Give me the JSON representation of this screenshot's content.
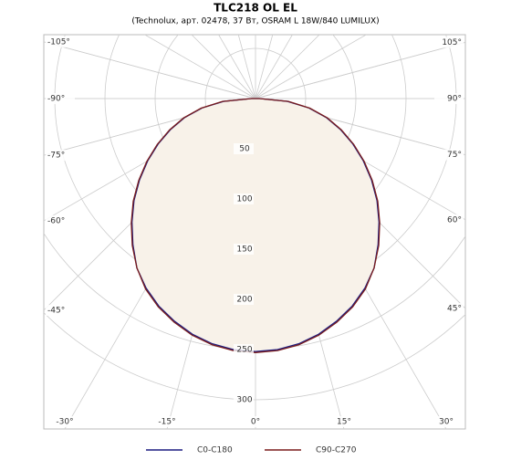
{
  "chart_data": {
    "type": "polar",
    "title": "TLC218 OL EL",
    "subtitle": "(Technolux, арт. 02478, 37 Вт, OSRAM L 18W/840 LUMILUX)",
    "x": [
      -90,
      -85,
      -80,
      -75,
      -70,
      -65,
      -60,
      -55,
      -50,
      -45,
      -40,
      -35,
      -30,
      -25,
      -20,
      -15,
      -10,
      -5,
      0,
      5,
      10,
      15,
      20,
      25,
      30,
      35,
      40,
      45,
      50,
      55,
      60,
      65,
      70,
      75,
      80,
      85,
      90
    ],
    "series": [
      {
        "name": "C0-C180",
        "color": "#1c1c80",
        "values": [
          4,
          32,
          54,
          73,
          90,
          107,
          124,
          141,
          158,
          174,
          190,
          206,
          218,
          228,
          236,
          243,
          248,
          251,
          252,
          251,
          248,
          243,
          236,
          228,
          218,
          206,
          190,
          174,
          158,
          141,
          124,
          107,
          90,
          73,
          54,
          32,
          4
        ]
      },
      {
        "name": "C90-C270",
        "color": "#7a1c1c",
        "values": [
          4,
          33,
          55,
          74,
          91,
          108,
          125,
          142,
          159,
          175,
          191,
          206,
          219,
          229,
          237,
          244,
          249,
          252,
          253,
          252,
          249,
          244,
          237,
          229,
          219,
          206,
          191,
          175,
          159,
          142,
          125,
          108,
          91,
          74,
          55,
          33,
          4
        ]
      }
    ],
    "fill": "#f8f2e9",
    "rlim": [
      0,
      300
    ],
    "rticks": [
      50,
      100,
      150,
      200,
      250,
      300
    ],
    "angle_ticks": [
      {
        "value": -105,
        "label": "-105°"
      },
      {
        "value": -90,
        "label": "-90°"
      },
      {
        "value": -75,
        "label": "-75°"
      },
      {
        "value": -60,
        "label": "-60°"
      },
      {
        "value": -45,
        "label": "-45°"
      },
      {
        "value": -30,
        "label": "-30°"
      },
      {
        "value": -15,
        "label": "-15°"
      },
      {
        "value": 0,
        "label": "0°"
      },
      {
        "value": 15,
        "label": "15°"
      },
      {
        "value": 30,
        "label": "30°"
      },
      {
        "value": 45,
        "label": "45°"
      },
      {
        "value": 60,
        "label": "60°"
      },
      {
        "value": 75,
        "label": "75°"
      },
      {
        "value": 90,
        "label": "90°"
      },
      {
        "value": 105,
        "label": "105°"
      }
    ]
  }
}
